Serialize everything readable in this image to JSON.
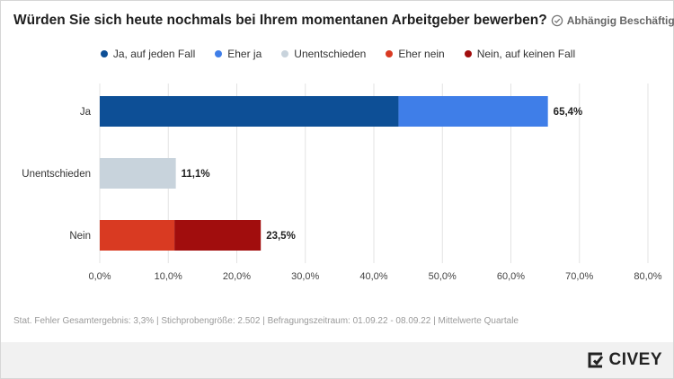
{
  "header": {
    "title": "Würden Sie sich heute nochmals bei Ihrem momentanen Arbeitgeber bewerben?",
    "segment": "Abhängig Beschäftigte",
    "segment_icon": "badge-check-icon"
  },
  "chart_data": {
    "type": "bar",
    "orientation": "horizontal",
    "stacked": true,
    "categories": [
      "Ja",
      "Unentschieden",
      "Nein"
    ],
    "series": [
      {
        "name": "Ja, auf jeden Fall",
        "color": "#0d4f96",
        "values": [
          43.6,
          0,
          0
        ]
      },
      {
        "name": "Eher ja",
        "color": "#3f7ee8",
        "values": [
          21.8,
          0,
          0
        ]
      },
      {
        "name": "Unentschieden",
        "color": "#c8d3dc",
        "values": [
          0,
          11.1,
          0
        ]
      },
      {
        "name": "Eher nein",
        "color": "#d93a22",
        "values": [
          0,
          0,
          10.9
        ]
      },
      {
        "name": "Nein, auf keinen Fall",
        "color": "#a10d0d",
        "values": [
          0,
          0,
          12.6
        ]
      }
    ],
    "totals": [
      "65,4%",
      "11,1%",
      "23,5%"
    ],
    "xlim": [
      0,
      80
    ],
    "xticks": [
      "0,0%",
      "10,0%",
      "20,0%",
      "30,0%",
      "40,0%",
      "50,0%",
      "60,0%",
      "70,0%",
      "80,0%"
    ],
    "grid": true,
    "legend_position": "top-center"
  },
  "footnote": "Stat. Fehler Gesamtergebnis: 3,3% | Stichprobengröße: 2.502 | Befragungszeitraum: 01.09.22 - 08.09.22 | Mittelwerte Quartale",
  "brand": {
    "name": "CIVEY",
    "icon": "civey-logo-icon"
  }
}
